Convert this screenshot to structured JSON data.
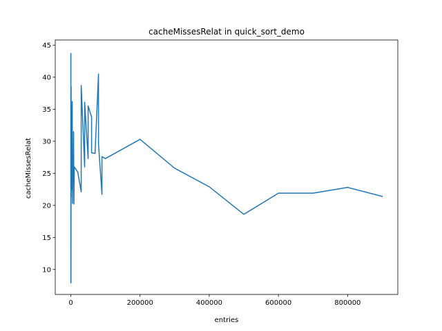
{
  "chart_data": {
    "type": "line",
    "title": "cacheMissesRelat in quick_sort_demo",
    "xlabel": "entries",
    "ylabel": "cacheMissesRelat",
    "xlim": [
      -45000,
      945000
    ],
    "ylim": [
      6.1,
      45.8
    ],
    "xticks": [
      0,
      200000,
      400000,
      600000,
      800000
    ],
    "xtick_labels": [
      "0",
      "200000",
      "400000",
      "600000",
      "800000"
    ],
    "yticks": [
      10,
      15,
      20,
      25,
      30,
      35,
      40,
      45
    ],
    "ytick_labels": [
      "10",
      "15",
      "20",
      "25",
      "30",
      "35",
      "40",
      "45"
    ],
    "grid": false,
    "line_color": "#1f77b4",
    "series": [
      {
        "name": "",
        "points": [
          [
            0,
            37.3
          ],
          [
            100,
            7.9
          ],
          [
            200,
            43.7
          ],
          [
            400,
            8.0
          ],
          [
            600,
            20.5
          ],
          [
            800,
            38.5
          ],
          [
            1000,
            21.3
          ],
          [
            2000,
            31.4
          ],
          [
            3000,
            22.5
          ],
          [
            4000,
            36.2
          ],
          [
            5000,
            20.3
          ],
          [
            6000,
            26.2
          ],
          [
            7000,
            24.7
          ],
          [
            8000,
            31.5
          ],
          [
            9000,
            20.2
          ],
          [
            10000,
            26.0
          ],
          [
            20000,
            25.2
          ],
          [
            30000,
            22.1
          ],
          [
            30000,
            38.7
          ],
          [
            40000,
            26.0
          ],
          [
            40000,
            36.1
          ],
          [
            50000,
            27.3
          ],
          [
            50000,
            35.5
          ],
          [
            60000,
            33.8
          ],
          [
            60000,
            28.2
          ],
          [
            70000,
            28.1
          ],
          [
            80000,
            40.5
          ],
          [
            80000,
            29.6
          ],
          [
            90000,
            21.7
          ],
          [
            90000,
            27.6
          ],
          [
            100000,
            27.3
          ],
          [
            200000,
            30.3
          ],
          [
            300000,
            25.8
          ],
          [
            400000,
            22.9
          ],
          [
            500000,
            18.6
          ],
          [
            600000,
            21.9
          ],
          [
            700000,
            21.9
          ],
          [
            800000,
            22.8
          ],
          [
            900000,
            21.4
          ]
        ]
      }
    ]
  }
}
